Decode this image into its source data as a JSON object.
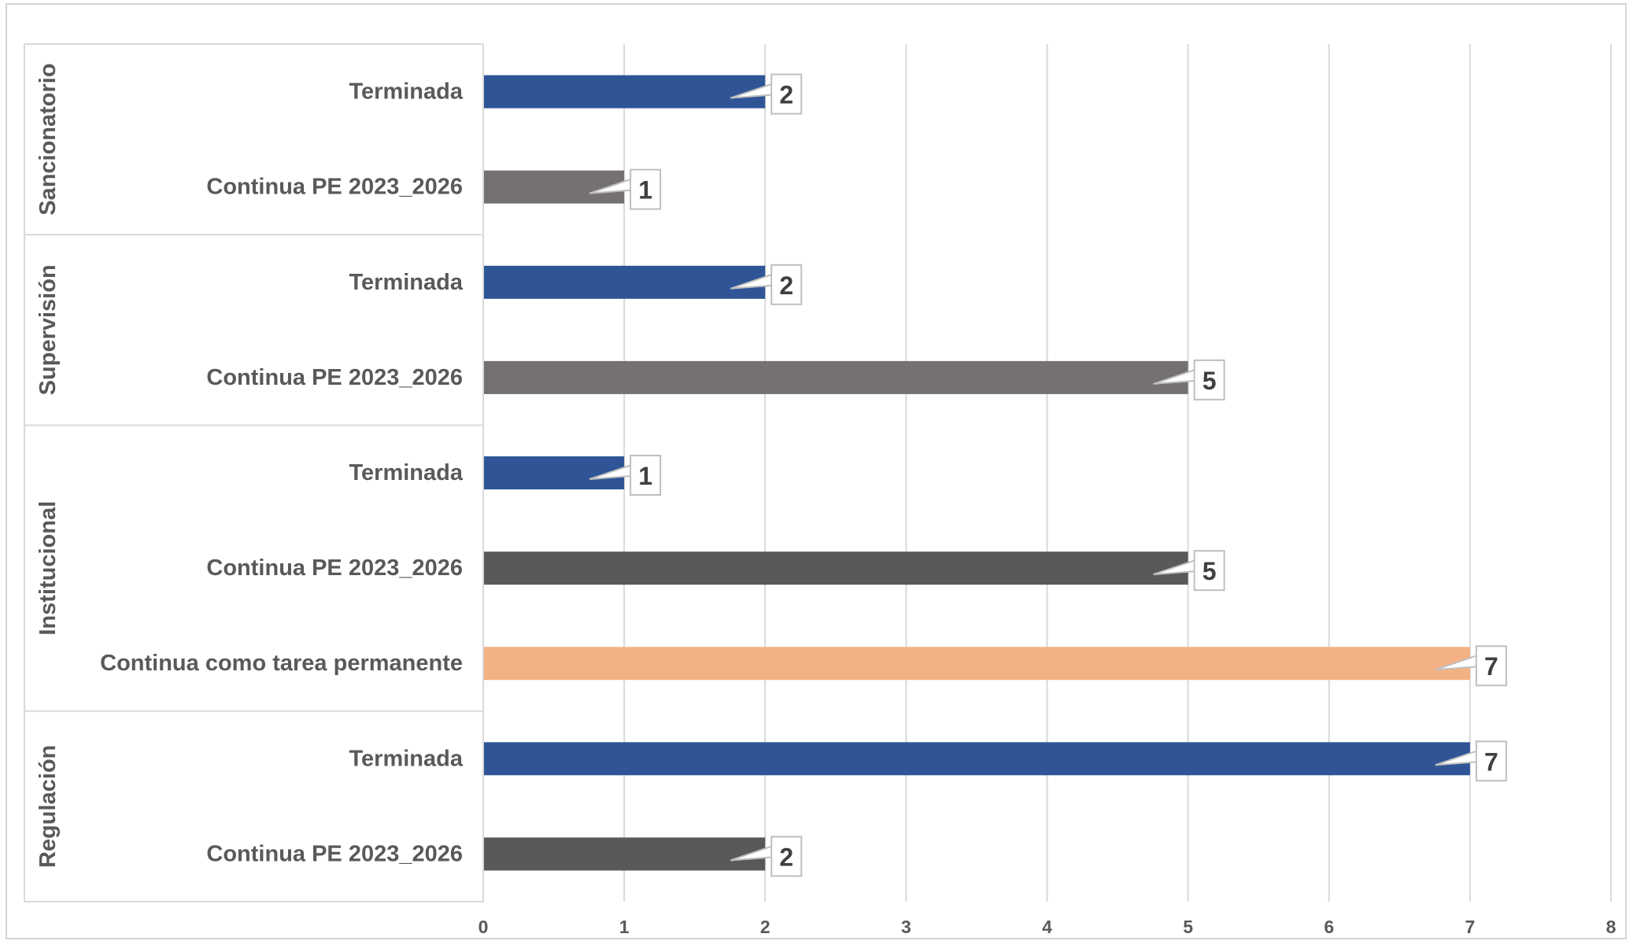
{
  "chart_data": {
    "type": "bar",
    "orientation": "horizontal",
    "xlim": [
      0,
      8
    ],
    "x_ticks": [
      "0",
      "1",
      "2",
      "3",
      "4",
      "5",
      "6",
      "7",
      "8"
    ],
    "grid": true,
    "legend": "none",
    "groups": [
      {
        "name": "Sancionatorio",
        "bars": [
          {
            "label": "Terminada",
            "value": 2,
            "data_label": "2",
            "color": "#2f5597"
          },
          {
            "label": "Continua PE 2023_2026",
            "value": 1,
            "data_label": "1",
            "color": "#767171"
          }
        ]
      },
      {
        "name": "Supervisión",
        "bars": [
          {
            "label": "Terminada",
            "value": 2,
            "data_label": "2",
            "color": "#2f5597"
          },
          {
            "label": "Continua PE 2023_2026",
            "value": 5,
            "data_label": "5",
            "color": "#767171"
          }
        ]
      },
      {
        "name": "Institucional",
        "bars": [
          {
            "label": "Terminada",
            "value": 1,
            "data_label": "1",
            "color": "#2f5597"
          },
          {
            "label": "Continua PE 2023_2026",
            "value": 5,
            "data_label": "5",
            "color": "#595959"
          },
          {
            "label": "Continua como tarea permanente",
            "value": 7,
            "data_label": "7",
            "color": "#f4b183"
          }
        ]
      },
      {
        "name": "Regulación",
        "bars": [
          {
            "label": "Terminada",
            "value": 7,
            "data_label": "7",
            "color": "#2f5597"
          },
          {
            "label": "Continua PE 2023_2026",
            "value": 2,
            "data_label": "2",
            "color": "#595959"
          }
        ]
      }
    ]
  },
  "colors": {
    "grid": "#d9d9d9",
    "axis": "#d9d9d9",
    "text": "#595959",
    "callout_border": "#bfbfbf"
  }
}
